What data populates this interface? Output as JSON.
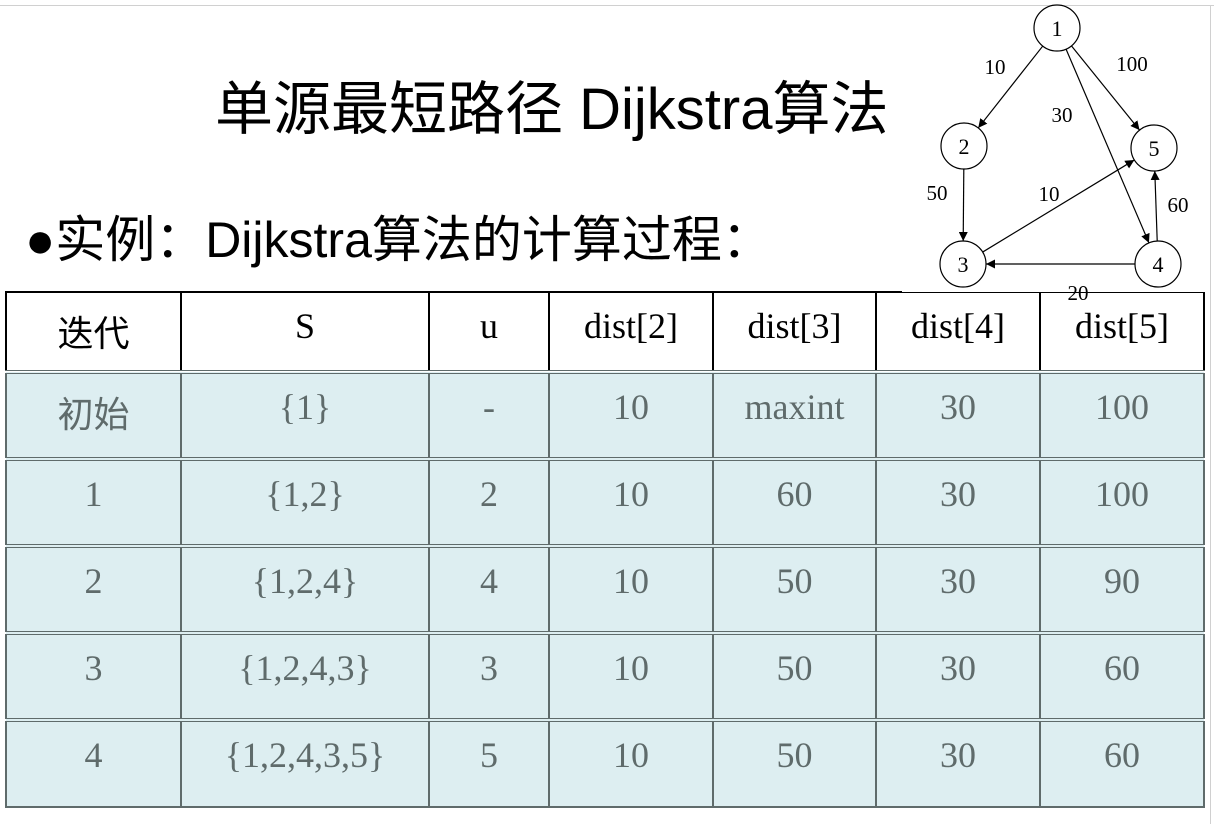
{
  "title": "单源最短路径 Dijkstra算法",
  "bullet": "●实例：Dijkstra算法的计算过程：",
  "table": {
    "headers": [
      "迭代",
      "S",
      "u",
      "dist[2]",
      "dist[3]",
      "dist[4]",
      "dist[5]"
    ],
    "rows": [
      [
        "初始",
        "{1}",
        "-",
        "10",
        "maxint",
        "30",
        "100"
      ],
      [
        "1",
        "{1,2}",
        "2",
        "10",
        "60",
        "30",
        "100"
      ],
      [
        "2",
        "{1,2,4}",
        "4",
        "10",
        "50",
        "30",
        "90"
      ],
      [
        "3",
        "{1,2,4,3}",
        "3",
        "10",
        "50",
        "30",
        "60"
      ],
      [
        "4",
        "{1,2,4,3,5}",
        "5",
        "10",
        "50",
        "30",
        "60"
      ]
    ]
  },
  "graph": {
    "nodes": [
      "1",
      "2",
      "3",
      "4",
      "5"
    ],
    "edges": [
      {
        "from": "1",
        "to": "2",
        "weight": "10"
      },
      {
        "from": "1",
        "to": "5",
        "weight": "100"
      },
      {
        "from": "1",
        "to": "4",
        "weight": "30"
      },
      {
        "from": "2",
        "to": "3",
        "weight": "50"
      },
      {
        "from": "3",
        "to": "5",
        "weight": "10"
      },
      {
        "from": "4",
        "to": "5",
        "weight": "60"
      },
      {
        "from": "4",
        "to": "3",
        "weight": "20"
      }
    ]
  }
}
